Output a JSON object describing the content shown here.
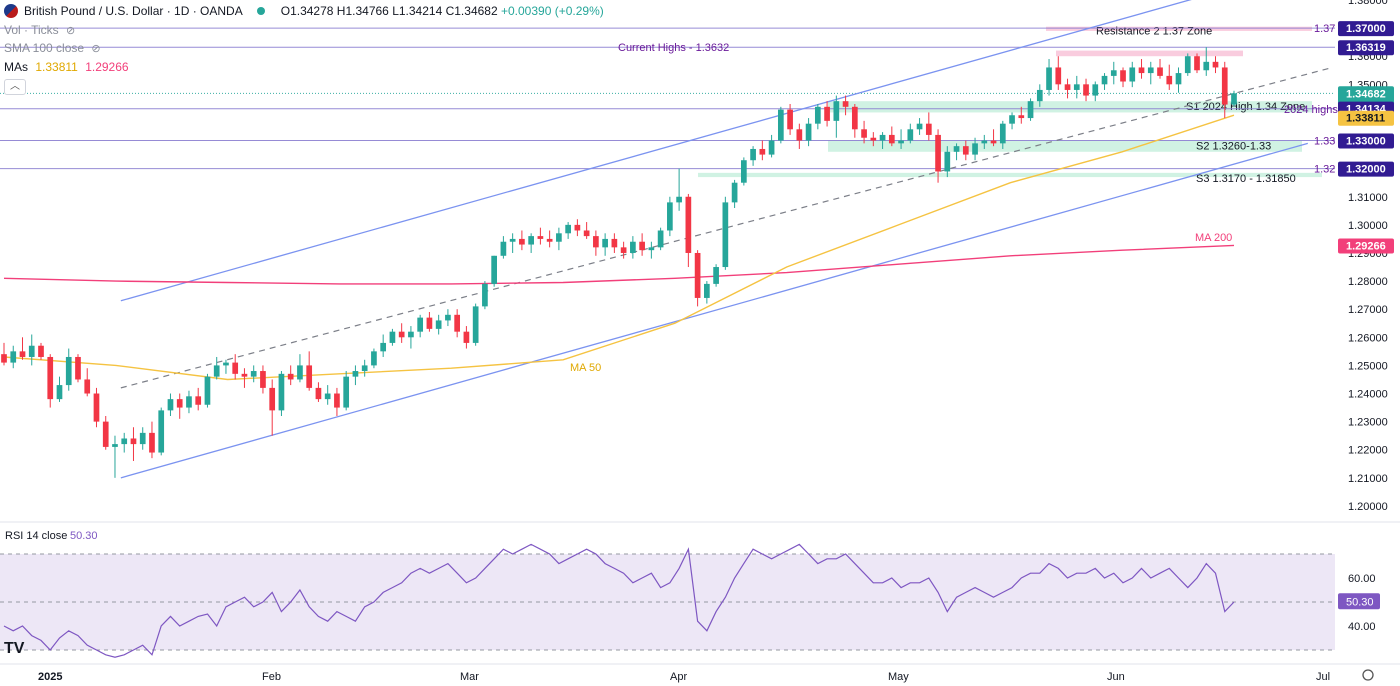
{
  "header": {
    "symbol": "British Pound / U.S. Dollar · 1D · OANDA",
    "open": "O1.34278",
    "high": "H1.34766",
    "low": "L1.34214",
    "close": "C1.34682",
    "change": "+0.00390 (+0.29%)",
    "vol_label": "Vol · Ticks",
    "sma_label": "SMA 100 close",
    "mas_label": "MAs",
    "ma50_value": "1.33811",
    "ma200_value": "1.29266",
    "collapse_icon": "chevron-up-icon"
  },
  "colors": {
    "up": "#26a69a",
    "down": "#f23645",
    "ma50": "#f5c342",
    "ma200": "#f23f7a",
    "channel": "#7b93f0",
    "hline": "#8b7fd1",
    "support_zone": "#c8f0de",
    "resistance_zone": "#f8c3d8",
    "rsi": "#7e57c2",
    "rsi_band": "#ede7f6"
  },
  "chart_data": [
    {
      "type": "candlestick",
      "title": "British Pound / U.S. Dollar · 1D · OANDA",
      "ylim": [
        1.195,
        1.38
      ],
      "y_ticks": [
        "1.20000",
        "1.21000",
        "1.22000",
        "1.23000",
        "1.24000",
        "1.25000",
        "1.26000",
        "1.27000",
        "1.28000",
        "1.29000",
        "1.30000",
        "1.31000",
        "1.32000",
        "1.33000",
        "1.34000",
        "1.35000",
        "1.36000",
        "1.38000"
      ],
      "x_ticks": [
        "2025",
        "Feb",
        "Mar",
        "Apr",
        "May",
        "Jun",
        "Jul"
      ],
      "ohlc": [
        [
          1.254,
          1.258,
          1.25,
          1.251
        ],
        [
          1.251,
          1.257,
          1.249,
          1.255
        ],
        [
          1.255,
          1.26,
          1.252,
          1.253
        ],
        [
          1.253,
          1.261,
          1.25,
          1.257
        ],
        [
          1.257,
          1.258,
          1.252,
          1.253
        ],
        [
          1.253,
          1.254,
          1.235,
          1.238
        ],
        [
          1.238,
          1.246,
          1.237,
          1.243
        ],
        [
          1.243,
          1.256,
          1.241,
          1.253
        ],
        [
          1.253,
          1.254,
          1.244,
          1.245
        ],
        [
          1.245,
          1.249,
          1.239,
          1.24
        ],
        [
          1.24,
          1.242,
          1.228,
          1.23
        ],
        [
          1.23,
          1.232,
          1.22,
          1.221
        ],
        [
          1.221,
          1.225,
          1.21,
          1.222
        ],
        [
          1.222,
          1.226,
          1.219,
          1.224
        ],
        [
          1.224,
          1.228,
          1.216,
          1.222
        ],
        [
          1.222,
          1.228,
          1.22,
          1.226
        ],
        [
          1.226,
          1.23,
          1.217,
          1.219
        ],
        [
          1.219,
          1.235,
          1.218,
          1.234
        ],
        [
          1.234,
          1.24,
          1.232,
          1.238
        ],
        [
          1.238,
          1.24,
          1.231,
          1.235
        ],
        [
          1.235,
          1.241,
          1.233,
          1.239
        ],
        [
          1.239,
          1.242,
          1.234,
          1.236
        ],
        [
          1.236,
          1.247,
          1.235,
          1.246
        ],
        [
          1.246,
          1.253,
          1.245,
          1.25
        ],
        [
          1.25,
          1.252,
          1.247,
          1.251
        ],
        [
          1.251,
          1.254,
          1.245,
          1.247
        ],
        [
          1.247,
          1.249,
          1.242,
          1.246
        ],
        [
          1.246,
          1.25,
          1.244,
          1.248
        ],
        [
          1.248,
          1.25,
          1.24,
          1.242
        ],
        [
          1.242,
          1.245,
          1.225,
          1.234
        ],
        [
          1.234,
          1.248,
          1.232,
          1.247
        ],
        [
          1.247,
          1.25,
          1.243,
          1.245
        ],
        [
          1.245,
          1.254,
          1.244,
          1.25
        ],
        [
          1.25,
          1.255,
          1.241,
          1.242
        ],
        [
          1.242,
          1.244,
          1.237,
          1.238
        ],
        [
          1.238,
          1.243,
          1.236,
          1.24
        ],
        [
          1.24,
          1.242,
          1.232,
          1.235
        ],
        [
          1.235,
          1.248,
          1.234,
          1.246
        ],
        [
          1.246,
          1.25,
          1.243,
          1.248
        ],
        [
          1.248,
          1.252,
          1.246,
          1.25
        ],
        [
          1.25,
          1.256,
          1.249,
          1.255
        ],
        [
          1.255,
          1.261,
          1.253,
          1.258
        ],
        [
          1.258,
          1.263,
          1.257,
          1.262
        ],
        [
          1.262,
          1.265,
          1.258,
          1.26
        ],
        [
          1.26,
          1.264,
          1.256,
          1.262
        ],
        [
          1.262,
          1.268,
          1.26,
          1.267
        ],
        [
          1.267,
          1.269,
          1.262,
          1.263
        ],
        [
          1.263,
          1.268,
          1.261,
          1.266
        ],
        [
          1.266,
          1.27,
          1.264,
          1.268
        ],
        [
          1.268,
          1.27,
          1.26,
          1.262
        ],
        [
          1.262,
          1.264,
          1.256,
          1.258
        ],
        [
          1.258,
          1.272,
          1.257,
          1.271
        ],
        [
          1.271,
          1.28,
          1.27,
          1.279
        ],
        [
          1.279,
          1.289,
          1.278,
          1.289
        ],
        [
          1.289,
          1.296,
          1.288,
          1.294
        ],
        [
          1.294,
          1.297,
          1.29,
          1.295
        ],
        [
          1.295,
          1.298,
          1.291,
          1.293
        ],
        [
          1.293,
          1.297,
          1.29,
          1.296
        ],
        [
          1.296,
          1.299,
          1.293,
          1.295
        ],
        [
          1.295,
          1.298,
          1.292,
          1.294
        ],
        [
          1.294,
          1.299,
          1.291,
          1.297
        ],
        [
          1.297,
          1.301,
          1.295,
          1.3
        ],
        [
          1.3,
          1.302,
          1.296,
          1.298
        ],
        [
          1.298,
          1.301,
          1.295,
          1.296
        ],
        [
          1.296,
          1.298,
          1.289,
          1.292
        ],
        [
          1.292,
          1.297,
          1.289,
          1.295
        ],
        [
          1.295,
          1.297,
          1.29,
          1.292
        ],
        [
          1.292,
          1.294,
          1.288,
          1.29
        ],
        [
          1.29,
          1.296,
          1.288,
          1.294
        ],
        [
          1.294,
          1.297,
          1.289,
          1.291
        ],
        [
          1.291,
          1.294,
          1.288,
          1.292
        ],
        [
          1.292,
          1.299,
          1.291,
          1.298
        ],
        [
          1.298,
          1.31,
          1.296,
          1.308
        ],
        [
          1.308,
          1.32,
          1.305,
          1.31
        ],
        [
          1.31,
          1.311,
          1.285,
          1.29
        ],
        [
          1.29,
          1.291,
          1.271,
          1.274
        ],
        [
          1.274,
          1.28,
          1.272,
          1.279
        ],
        [
          1.279,
          1.286,
          1.278,
          1.285
        ],
        [
          1.285,
          1.31,
          1.284,
          1.308
        ],
        [
          1.308,
          1.316,
          1.306,
          1.315
        ],
        [
          1.315,
          1.324,
          1.314,
          1.323
        ],
        [
          1.323,
          1.328,
          1.321,
          1.327
        ],
        [
          1.327,
          1.33,
          1.323,
          1.325
        ],
        [
          1.325,
          1.332,
          1.324,
          1.33
        ],
        [
          1.33,
          1.342,
          1.329,
          1.341
        ],
        [
          1.341,
          1.343,
          1.332,
          1.334
        ],
        [
          1.334,
          1.336,
          1.327,
          1.33
        ],
        [
          1.33,
          1.338,
          1.328,
          1.336
        ],
        [
          1.336,
          1.343,
          1.334,
          1.342
        ],
        [
          1.342,
          1.344,
          1.335,
          1.337
        ],
        [
          1.337,
          1.346,
          1.331,
          1.344
        ],
        [
          1.344,
          1.346,
          1.339,
          1.342
        ],
        [
          1.342,
          1.343,
          1.331,
          1.334
        ],
        [
          1.334,
          1.337,
          1.329,
          1.331
        ],
        [
          1.331,
          1.333,
          1.328,
          1.33
        ],
        [
          1.33,
          1.333,
          1.327,
          1.332
        ],
        [
          1.332,
          1.335,
          1.328,
          1.329
        ],
        [
          1.329,
          1.334,
          1.327,
          1.33
        ],
        [
          1.33,
          1.336,
          1.329,
          1.334
        ],
        [
          1.334,
          1.338,
          1.332,
          1.336
        ],
        [
          1.336,
          1.34,
          1.33,
          1.332
        ],
        [
          1.332,
          1.334,
          1.315,
          1.319
        ],
        [
          1.319,
          1.328,
          1.317,
          1.326
        ],
        [
          1.326,
          1.329,
          1.323,
          1.328
        ],
        [
          1.328,
          1.33,
          1.323,
          1.325
        ],
        [
          1.325,
          1.331,
          1.323,
          1.329
        ],
        [
          1.329,
          1.332,
          1.327,
          1.33
        ],
        [
          1.33,
          1.334,
          1.328,
          1.329
        ],
        [
          1.329,
          1.337,
          1.327,
          1.336
        ],
        [
          1.336,
          1.34,
          1.334,
          1.339
        ],
        [
          1.339,
          1.342,
          1.336,
          1.338
        ],
        [
          1.338,
          1.345,
          1.337,
          1.344
        ],
        [
          1.344,
          1.35,
          1.342,
          1.348
        ],
        [
          1.348,
          1.359,
          1.346,
          1.356
        ],
        [
          1.356,
          1.36,
          1.348,
          1.35
        ],
        [
          1.35,
          1.352,
          1.345,
          1.348
        ],
        [
          1.348,
          1.353,
          1.345,
          1.35
        ],
        [
          1.35,
          1.352,
          1.344,
          1.346
        ],
        [
          1.346,
          1.351,
          1.344,
          1.35
        ],
        [
          1.35,
          1.354,
          1.348,
          1.353
        ],
        [
          1.353,
          1.358,
          1.35,
          1.355
        ],
        [
          1.355,
          1.356,
          1.349,
          1.351
        ],
        [
          1.351,
          1.358,
          1.349,
          1.356
        ],
        [
          1.356,
          1.359,
          1.352,
          1.354
        ],
        [
          1.354,
          1.358,
          1.35,
          1.356
        ],
        [
          1.356,
          1.359,
          1.352,
          1.353
        ],
        [
          1.353,
          1.357,
          1.348,
          1.35
        ],
        [
          1.35,
          1.356,
          1.347,
          1.354
        ],
        [
          1.354,
          1.361,
          1.353,
          1.36
        ],
        [
          1.36,
          1.361,
          1.354,
          1.355
        ],
        [
          1.355,
          1.3632,
          1.353,
          1.358
        ],
        [
          1.358,
          1.36,
          1.354,
          1.356
        ],
        [
          1.356,
          1.358,
          1.338,
          1.3428
        ],
        [
          1.3428,
          1.3477,
          1.3421,
          1.3468
        ]
      ],
      "ma50": [
        1.253,
        1.25,
        1.245,
        1.247,
        1.249,
        1.252,
        1.265,
        1.285,
        1.3,
        1.315,
        1.326,
        1.339
      ],
      "ma200": [
        1.281,
        1.28,
        1.2795,
        1.279,
        1.279,
        1.2795,
        1.281,
        1.283,
        1.286,
        1.289,
        1.291,
        1.2927
      ],
      "h_levels": [
        {
          "value": 1.37,
          "label": "1.37"
        },
        {
          "value": 1.3632,
          "label": "Current Highs - 1.3632"
        },
        {
          "value": 1.3468,
          "label": ""
        },
        {
          "value": 1.3413,
          "label": "2024 highs"
        },
        {
          "value": 1.33,
          "label": "1.33"
        },
        {
          "value": 1.32,
          "label": "1.32"
        }
      ],
      "zones": [
        {
          "from": 1.369,
          "to": 1.3705,
          "label": "Resistance 2 1.37 Zone",
          "kind": "resistance"
        },
        {
          "from": 1.36,
          "to": 1.362,
          "label": "",
          "kind": "resistance"
        },
        {
          "from": 1.34,
          "to": 1.344,
          "label": "S1 2024 High 1.34 Zone",
          "kind": "support"
        },
        {
          "from": 1.326,
          "to": 1.33,
          "label": "S2 1.3260-1.33",
          "kind": "support"
        },
        {
          "from": 1.317,
          "to": 1.3185,
          "label": "S3 1.3170 - 1.31850",
          "kind": "support"
        }
      ],
      "channel": {
        "upper": [
          [
            1.273,
            1.382
          ]
        ],
        "lower": [
          [
            1.21,
            1.329
          ]
        ],
        "mid": [
          [
            1.242,
            1.356
          ]
        ]
      },
      "annotations": [
        "MA 50",
        "MA 200"
      ],
      "price_tags": [
        {
          "value": "1.37000",
          "color": "#311b92"
        },
        {
          "value": "1.36319",
          "color": "#311b92"
        },
        {
          "value": "1.34682",
          "color": "#26a69a",
          "sub": "06:50:49"
        },
        {
          "value": "1.34134",
          "color": "#311b92"
        },
        {
          "value": "1.33811",
          "color": "#f5c342"
        },
        {
          "value": "1.33000",
          "color": "#311b92"
        },
        {
          "value": "1.32000",
          "color": "#311b92"
        },
        {
          "value": "1.29266",
          "color": "#f23f7a"
        }
      ]
    },
    {
      "type": "line",
      "title": "RSI 14 close",
      "current": "50.30",
      "ylim": [
        25,
        80
      ],
      "y_ticks": [
        "40.00",
        "60.00"
      ],
      "band": [
        30,
        70
      ],
      "values": [
        40,
        38,
        40,
        36,
        34,
        30,
        35,
        38,
        36,
        32,
        30,
        28,
        27,
        28,
        30,
        32,
        28,
        40,
        44,
        40,
        42,
        44,
        45,
        40,
        48,
        50,
        52,
        48,
        50,
        54,
        46,
        50,
        55,
        48,
        44,
        42,
        46,
        44,
        42,
        48,
        50,
        54,
        56,
        58,
        62,
        64,
        62,
        64,
        66,
        62,
        58,
        60,
        64,
        68,
        72,
        70,
        72,
        74,
        72,
        70,
        66,
        68,
        70,
        72,
        70,
        66,
        64,
        62,
        58,
        60,
        62,
        56,
        58,
        64,
        72,
        42,
        38,
        46,
        52,
        60,
        66,
        72,
        70,
        68,
        70,
        72,
        74,
        70,
        66,
        68,
        68,
        70,
        66,
        62,
        58,
        58,
        60,
        56,
        58,
        58,
        60,
        54,
        46,
        52,
        54,
        56,
        54,
        52,
        54,
        56,
        60,
        62,
        62,
        66,
        64,
        60,
        62,
        62,
        64,
        60,
        62,
        58,
        60,
        64,
        60,
        62,
        64,
        60,
        56,
        60,
        66,
        62,
        46,
        50
      ]
    }
  ],
  "rsi_label": "RSI 14 close",
  "rsi_value": "50.30"
}
